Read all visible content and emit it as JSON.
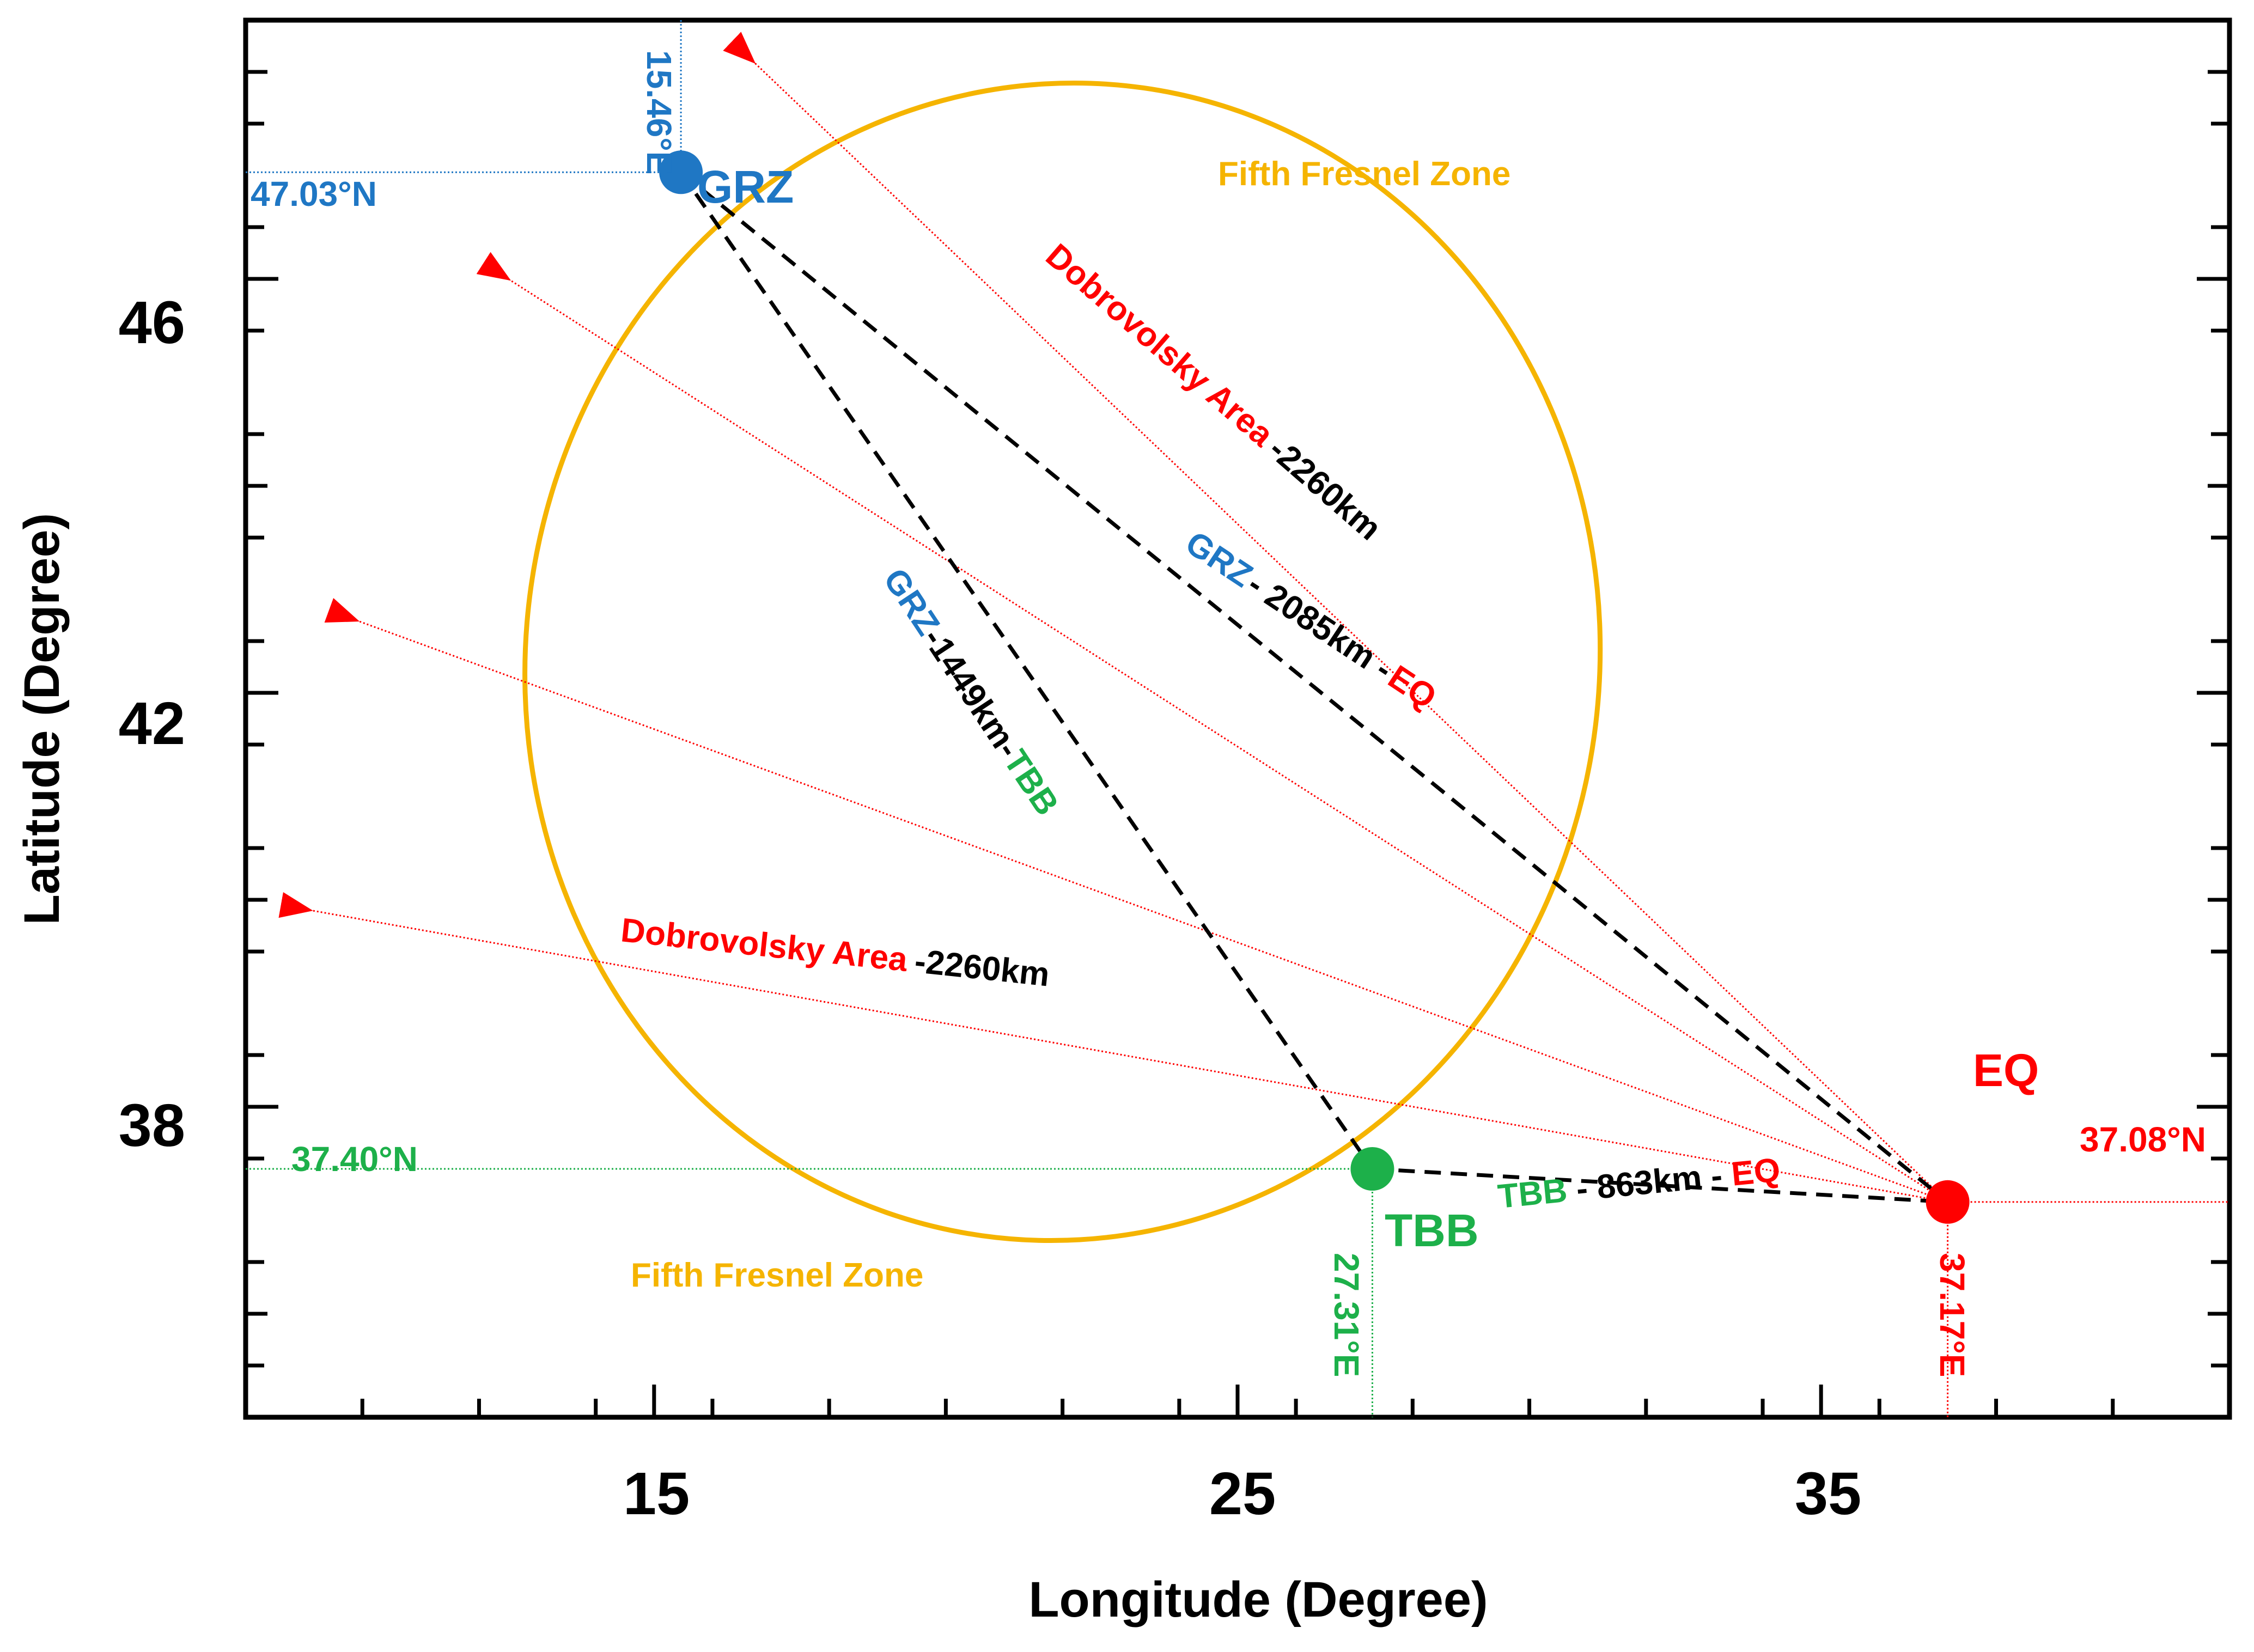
{
  "chart_data": {
    "type": "scatter",
    "title": "",
    "xlabel": "Longitude  (Degree)",
    "ylabel": "Latitude  (Degree)",
    "xlim": [
      8,
      42
    ],
    "ylim": [
      35,
      48.5
    ],
    "xticks": [
      "15",
      "25",
      "35"
    ],
    "yticks": [
      "38",
      "42",
      "46"
    ],
    "grid": false,
    "colors": {
      "grz": "#1f77c4",
      "tbb": "#1db04a",
      "eq": "#ff0000",
      "fresnel": "#f5b400",
      "path": "#000000"
    },
    "points": [
      {
        "name": "GRZ",
        "lon": 15.46,
        "lat": 47.03,
        "lon_label": "15.46°E",
        "lat_label": "47.03°N",
        "color": "#1f77c4"
      },
      {
        "name": "TBB",
        "lon": 27.31,
        "lat": 37.4,
        "lon_label": "27.31°E",
        "lat_label": "37.40°N",
        "color": "#1db04a"
      },
      {
        "name": "EQ",
        "lon": 37.17,
        "lat": 37.08,
        "lon_label": "37.17°E",
        "lat_label": "37.08°N",
        "color": "#ff0000"
      }
    ],
    "paths": [
      {
        "from": "GRZ",
        "to": "EQ",
        "distance": "2085km"
      },
      {
        "from": "GRZ",
        "to": "TBB",
        "distance": "1449km"
      },
      {
        "from": "TBB",
        "to": "EQ",
        "distance": "863km"
      }
    ],
    "fresnel_zone": {
      "label": "Fifth Fresnel Zone",
      "center_lon": 22,
      "center_lat": 42.3,
      "semi_axis_lon": 9.2,
      "semi_axis_lat": 5.6,
      "rotation_deg": 8
    },
    "dobrovolsky": {
      "label": "Dobrovolsky Area",
      "radius": "2260km",
      "origin": "EQ",
      "arrow_tips": [
        {
          "lon": 16.7,
          "lat": 48.1
        },
        {
          "lon": 12.5,
          "lat": 46.0
        },
        {
          "lon": 9.9,
          "lat": 42.7
        },
        {
          "lon": 9.1,
          "lat": 39.9
        }
      ]
    }
  },
  "labels": {
    "fresnel_top": "Fifth Fresnel Zone",
    "fresnel_bottom": "Fifth Fresnel Zone",
    "dob_upper_area": "Dobrovolsky Area",
    "dob_upper_dist": "-2260km",
    "dob_lower_area": "Dobrovolsky Area",
    "dob_lower_dist": "-2260km",
    "grz_eq_a": "GRZ",
    "grz_eq_b": "- 2085km -",
    "grz_eq_c": "EQ",
    "grz_tbb_a": "GRZ",
    "grz_tbb_b": "-1449km-",
    "grz_tbb_c": "TBB",
    "tbb_eq_a": "TBB",
    "tbb_eq_b": " - 863km - ",
    "tbb_eq_c": "EQ"
  }
}
